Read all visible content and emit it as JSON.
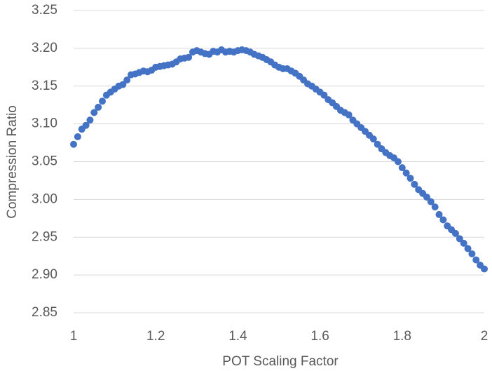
{
  "chart_data": {
    "type": "scatter",
    "x_label": "POT Scaling Factor",
    "y_label": "Compression Ratio",
    "color": "#4472c4",
    "grid": true,
    "xlim": [
      1,
      2
    ],
    "xticks": [
      1,
      1.2,
      1.4,
      1.6,
      1.8,
      2
    ],
    "ylim": [
      2.85,
      3.25
    ],
    "yticks": [
      2.85,
      {
        "value": 2.9,
        "label": "2.90"
      },
      2.95,
      {
        "value": 3.0,
        "label": "3.00"
      },
      3.05,
      {
        "value": 3.1,
        "label": "3.10"
      },
      3.15,
      {
        "value": 3.2,
        "label": "3.20"
      },
      3.25
    ],
    "x": [
      1.0,
      1.01,
      1.02,
      1.03,
      1.04,
      1.05,
      1.06,
      1.07,
      1.08,
      1.09,
      1.1,
      1.11,
      1.12,
      1.13,
      1.14,
      1.15,
      1.16,
      1.17,
      1.18,
      1.19,
      1.2,
      1.21,
      1.22,
      1.23,
      1.24,
      1.25,
      1.26,
      1.27,
      1.28,
      1.29,
      1.3,
      1.31,
      1.32,
      1.33,
      1.34,
      1.35,
      1.36,
      1.37,
      1.38,
      1.39,
      1.4,
      1.41,
      1.42,
      1.43,
      1.44,
      1.45,
      1.46,
      1.47,
      1.48,
      1.49,
      1.5,
      1.51,
      1.52,
      1.53,
      1.54,
      1.55,
      1.56,
      1.57,
      1.58,
      1.59,
      1.6,
      1.61,
      1.62,
      1.63,
      1.64,
      1.65,
      1.66,
      1.67,
      1.68,
      1.69,
      1.7,
      1.71,
      1.72,
      1.73,
      1.74,
      1.75,
      1.76,
      1.77,
      1.78,
      1.79,
      1.8,
      1.81,
      1.82,
      1.83,
      1.84,
      1.85,
      1.86,
      1.87,
      1.88,
      1.89,
      1.9,
      1.91,
      1.92,
      1.93,
      1.94,
      1.95,
      1.96,
      1.97,
      1.98,
      1.99,
      2.0
    ],
    "values": [
      3.073,
      3.083,
      3.093,
      3.098,
      3.105,
      3.115,
      3.122,
      3.13,
      3.138,
      3.142,
      3.146,
      3.15,
      3.152,
      3.158,
      3.165,
      3.166,
      3.168,
      3.17,
      3.169,
      3.171,
      3.175,
      3.176,
      3.177,
      3.178,
      3.179,
      3.182,
      3.186,
      3.187,
      3.188,
      3.195,
      3.197,
      3.195,
      3.193,
      3.192,
      3.196,
      3.195,
      3.198,
      3.195,
      3.196,
      3.195,
      3.197,
      3.198,
      3.197,
      3.195,
      3.192,
      3.19,
      3.188,
      3.185,
      3.182,
      3.178,
      3.175,
      3.173,
      3.173,
      3.17,
      3.167,
      3.163,
      3.158,
      3.153,
      3.15,
      3.146,
      3.142,
      3.138,
      3.132,
      3.128,
      3.123,
      3.118,
      3.115,
      3.112,
      3.105,
      3.1,
      3.095,
      3.09,
      3.085,
      3.08,
      3.073,
      3.067,
      3.062,
      3.058,
      3.055,
      3.05,
      3.042,
      3.035,
      3.028,
      3.02,
      3.013,
      3.008,
      3.003,
      2.997,
      2.99,
      2.98,
      2.973,
      2.965,
      2.96,
      2.955,
      2.948,
      2.942,
      2.935,
      2.928,
      2.92,
      2.913,
      2.908
    ]
  }
}
